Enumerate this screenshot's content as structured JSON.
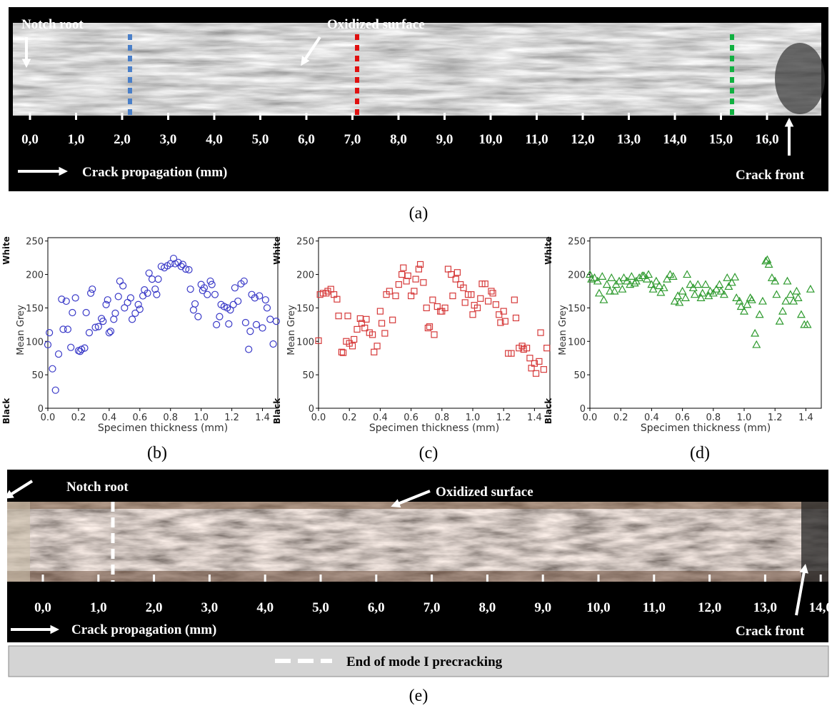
{
  "panel_a": {
    "notch_root": "Notch root",
    "oxidized_surface": "Oxidized surface",
    "crack_front": "Crack front",
    "axis_label": "Crack propagation (mm)",
    "ticks": [
      "0,0",
      "1,0",
      "2,0",
      "3,0",
      "4,0",
      "5,0",
      "6,0",
      "7,0",
      "8,0",
      "9,0",
      "10,0",
      "11,0",
      "12,0",
      "13,0",
      "14,0",
      "15,0",
      "16,0"
    ],
    "caption": "(a)"
  },
  "chart_data": [
    {
      "type": "scatter",
      "caption": "(b)",
      "xlabel": "Specimen thickness (mm)",
      "ylabel": "Mean Grey",
      "ylabel_top": "White",
      "ylabel_bottom": "Black",
      "marker": "circle",
      "color": "#3a3ac8",
      "xlim": [
        0,
        1.5
      ],
      "ylim": [
        0,
        255
      ],
      "xticks": [
        {
          "value": 0,
          "label": "0.0"
        },
        0.2,
        0.4,
        0.6,
        0.8,
        {
          "value": 1,
          "label": "1.0"
        },
        1.2,
        1.4
      ],
      "yticks": [
        0,
        50,
        100,
        150,
        200,
        250
      ],
      "x": [
        0,
        0.01,
        0.03,
        0.05,
        0.07,
        0.09,
        0.1,
        0.12,
        0.13,
        0.15,
        0.16,
        0.18,
        0.2,
        0.21,
        0.22,
        0.24,
        0.25,
        0.27,
        0.28,
        0.29,
        0.31,
        0.33,
        0.35,
        0.36,
        0.38,
        0.39,
        0.4,
        0.41,
        0.43,
        0.44,
        0.46,
        0.47,
        0.49,
        0.5,
        0.52,
        0.54,
        0.55,
        0.57,
        0.59,
        0.6,
        0.62,
        0.63,
        0.65,
        0.66,
        0.68,
        0.7,
        0.71,
        0.72,
        0.74,
        0.76,
        0.78,
        0.8,
        0.82,
        0.83,
        0.85,
        0.87,
        0.88,
        0.9,
        0.92,
        0.93,
        0.95,
        0.96,
        0.98,
        1.0,
        1.01,
        1.02,
        1.04,
        1.06,
        1.07,
        1.09,
        1.1,
        1.12,
        1.13,
        1.15,
        1.17,
        1.18,
        1.19,
        1.21,
        1.22,
        1.24,
        1.26,
        1.28,
        1.29,
        1.31,
        1.32,
        1.33,
        1.35,
        1.36,
        1.38,
        1.4,
        1.42,
        1.43,
        1.45,
        1.47,
        1.49
      ],
      "values": [
        95,
        113,
        59,
        27,
        81,
        163,
        118,
        160,
        118,
        91,
        143,
        165,
        86,
        85,
        88,
        90,
        143,
        113,
        172,
        178,
        121,
        122,
        134,
        130,
        155,
        162,
        113,
        115,
        133,
        142,
        167,
        190,
        183,
        150,
        158,
        165,
        133,
        142,
        155,
        148,
        168,
        177,
        172,
        202,
        193,
        178,
        170,
        193,
        212,
        210,
        213,
        216,
        224,
        216,
        218,
        212,
        215,
        208,
        207,
        178,
        147,
        156,
        137,
        185,
        176,
        180,
        170,
        190,
        185,
        170,
        125,
        137,
        155,
        152,
        150,
        126,
        147,
        155,
        180,
        160,
        186,
        190,
        128,
        88,
        115,
        170,
        165,
        125,
        168,
        120,
        162,
        150,
        133,
        96,
        130
      ]
    },
    {
      "type": "scatter",
      "caption": "(c)",
      "xlabel": "Specimen thickness (mm)",
      "ylabel": "Mean Grey",
      "ylabel_top": "White",
      "ylabel_bottom": "Black",
      "marker": "square",
      "color": "#d63a3a",
      "xlim": [
        0,
        1.5
      ],
      "ylim": [
        0,
        255
      ],
      "xticks": [
        {
          "value": 0,
          "label": "0.0"
        },
        0.2,
        0.4,
        0.6,
        0.8,
        {
          "value": 1,
          "label": "1.0"
        },
        1.2,
        1.4
      ],
      "yticks": [
        0,
        50,
        100,
        150,
        200,
        250
      ],
      "x": [
        0,
        0.01,
        0.03,
        0.05,
        0.06,
        0.08,
        0.1,
        0.12,
        0.13,
        0.15,
        0.16,
        0.18,
        0.19,
        0.2,
        0.22,
        0.23,
        0.25,
        0.27,
        0.28,
        0.3,
        0.31,
        0.33,
        0.35,
        0.36,
        0.38,
        0.4,
        0.41,
        0.43,
        0.44,
        0.46,
        0.48,
        0.5,
        0.52,
        0.54,
        0.55,
        0.57,
        0.58,
        0.6,
        0.62,
        0.63,
        0.65,
        0.66,
        0.68,
        0.7,
        0.71,
        0.72,
        0.74,
        0.75,
        0.77,
        0.79,
        0.8,
        0.82,
        0.84,
        0.86,
        0.87,
        0.89,
        0.9,
        0.92,
        0.94,
        0.95,
        0.97,
        0.99,
        1.0,
        1.01,
        1.03,
        1.05,
        1.06,
        1.08,
        1.1,
        1.12,
        1.13,
        1.15,
        1.17,
        1.18,
        1.2,
        1.21,
        1.23,
        1.25,
        1.27,
        1.28,
        1.3,
        1.32,
        1.33,
        1.35,
        1.37,
        1.38,
        1.4,
        1.41,
        1.43,
        1.44,
        1.46,
        1.48
      ],
      "values": [
        101,
        170,
        172,
        172,
        175,
        178,
        170,
        163,
        138,
        84,
        83,
        100,
        138,
        97,
        93,
        103,
        118,
        134,
        127,
        120,
        133,
        113,
        110,
        84,
        93,
        145,
        127,
        112,
        170,
        175,
        132,
        168,
        185,
        200,
        210,
        190,
        198,
        168,
        175,
        193,
        208,
        215,
        188,
        150,
        120,
        122,
        162,
        110,
        152,
        145,
        145,
        150,
        208,
        200,
        168,
        193,
        203,
        185,
        180,
        158,
        170,
        170,
        140,
        154,
        150,
        164,
        186,
        186,
        160,
        175,
        172,
        155,
        140,
        128,
        145,
        130,
        82,
        82,
        162,
        135,
        90,
        93,
        88,
        90,
        75,
        60,
        67,
        52,
        70,
        113,
        58,
        90
      ]
    },
    {
      "type": "scatter",
      "caption": "(d)",
      "xlabel": "Specimen thickness (mm)",
      "ylabel": "Mean Grey",
      "ylabel_top": "White",
      "ylabel_bottom": "Black",
      "marker": "triangle",
      "color": "#2e9a2e",
      "xlim": [
        0,
        1.5
      ],
      "ylim": [
        0,
        255
      ],
      "xticks": [
        {
          "value": 0,
          "label": "0.0"
        },
        0.2,
        0.4,
        0.6,
        0.8,
        {
          "value": 1,
          "label": "1.0"
        },
        1.2,
        1.4
      ],
      "yticks": [
        0,
        50,
        100,
        150,
        200,
        250
      ],
      "x": [
        0,
        0.01,
        0.03,
        0.05,
        0.06,
        0.08,
        0.09,
        0.11,
        0.13,
        0.14,
        0.16,
        0.17,
        0.19,
        0.21,
        0.22,
        0.24,
        0.26,
        0.27,
        0.29,
        0.3,
        0.32,
        0.34,
        0.35,
        0.37,
        0.38,
        0.4,
        0.41,
        0.43,
        0.45,
        0.46,
        0.48,
        0.5,
        0.52,
        0.54,
        0.55,
        0.57,
        0.58,
        0.6,
        0.62,
        0.63,
        0.65,
        0.67,
        0.68,
        0.7,
        0.72,
        0.73,
        0.75,
        0.77,
        0.78,
        0.8,
        0.82,
        0.84,
        0.85,
        0.87,
        0.89,
        0.9,
        0.92,
        0.94,
        0.95,
        0.97,
        0.98,
        1.0,
        1.02,
        1.04,
        1.05,
        1.07,
        1.08,
        1.1,
        1.12,
        1.14,
        1.15,
        1.16,
        1.18,
        1.2,
        1.21,
        1.23,
        1.25,
        1.27,
        1.28,
        1.3,
        1.32,
        1.34,
        1.35,
        1.37,
        1.39,
        1.41,
        1.43
      ],
      "values": [
        200,
        193,
        195,
        190,
        172,
        197,
        162,
        185,
        175,
        195,
        175,
        185,
        190,
        178,
        195,
        190,
        185,
        197,
        187,
        190,
        195,
        198,
        198,
        193,
        200,
        185,
        178,
        190,
        183,
        173,
        180,
        193,
        200,
        197,
        160,
        168,
        158,
        175,
        165,
        200,
        185,
        180,
        170,
        185,
        165,
        172,
        185,
        168,
        175,
        172,
        178,
        185,
        175,
        170,
        195,
        182,
        188,
        196,
        165,
        160,
        152,
        145,
        155,
        165,
        162,
        112,
        95,
        140,
        160,
        220,
        222,
        215,
        195,
        190,
        170,
        130,
        145,
        160,
        190,
        170,
        160,
        175,
        165,
        140,
        125,
        125,
        178
      ]
    }
  ],
  "panel_e": {
    "notch_root": "Notch root",
    "oxidized_surface": "Oxidized surface",
    "crack_front": "Crack front",
    "axis_label": "Crack propagation (mm)",
    "ticks": [
      "0,0",
      "1,0",
      "2,0",
      "3,0",
      "4,0",
      "5,0",
      "6,0",
      "7,0",
      "8,0",
      "9,0",
      "10,0",
      "11,0",
      "12,0",
      "13,0",
      "14,0"
    ],
    "legend": "End of mode I precracking",
    "caption": "(e)"
  }
}
